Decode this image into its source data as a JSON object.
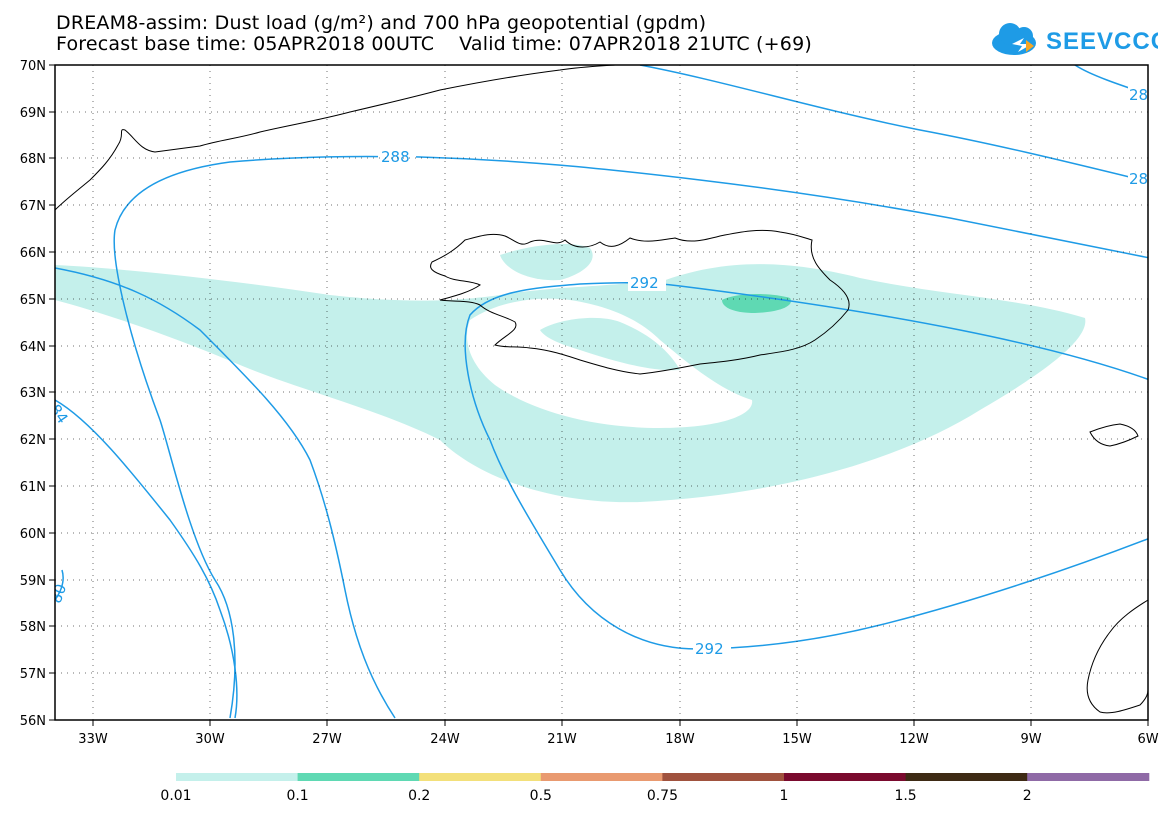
{
  "title": {
    "line1": "DREAM8-assim: Dust load (g/m²) and 700 hPa geopotential (gpdm)",
    "line2": "Forecast base time: 05APR2018 00UTC    Valid time: 07APR2018 21UTC (+69)"
  },
  "logo": {
    "text": "SEEVCCC",
    "icon": "cloud-arrow-icon",
    "color": "#1e9be6"
  },
  "map": {
    "lat_range": [
      56,
      70
    ],
    "lon_range": [
      -34.5,
      -6
    ],
    "lat_ticks": [
      "56N",
      "57N",
      "58N",
      "59N",
      "60N",
      "61N",
      "62N",
      "63N",
      "64N",
      "65N",
      "66N",
      "67N",
      "68N",
      "69N",
      "70N"
    ],
    "lon_ticks": [
      "33W",
      "30W",
      "27W",
      "24W",
      "21W",
      "18W",
      "15W",
      "12W",
      "9W",
      "6W"
    ],
    "contour_color": "#1e9be6",
    "contour_labels": [
      "288",
      "292",
      "292",
      "28",
      "28",
      "84",
      "80"
    ],
    "dust_colors": {
      "low": "#c4f0eb",
      "mid": "#5fd9b3"
    }
  },
  "colorbar": {
    "colors": [
      "#c4f0eb",
      "#5fd9b3",
      "#f3e07a",
      "#e99a70",
      "#a0523e",
      "#7a0a2e",
      "#3e2a14",
      "#8f6aa6"
    ],
    "labels": [
      "0.01",
      "0.1",
      "0.2",
      "0.5",
      "0.75",
      "1",
      "1.5",
      "2"
    ]
  }
}
